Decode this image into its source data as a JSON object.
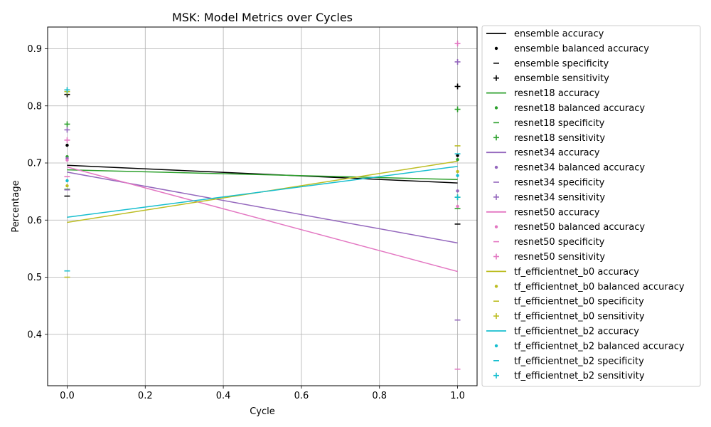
{
  "chart_data": {
    "type": "line",
    "title": "MSK: Model Metrics over Cycles",
    "xlabel": "Cycle",
    "ylabel": "Percentage",
    "xlim": [
      -0.05,
      1.05
    ],
    "ylim": [
      0.31,
      0.938
    ],
    "xticks": [
      "0.0",
      "0.2",
      "0.4",
      "0.6",
      "0.8",
      "1.0"
    ],
    "xtick_values": [
      0,
      0.2,
      0.4,
      0.6,
      0.8,
      1.0
    ],
    "yticks": [
      "0.4",
      "0.5",
      "0.6",
      "0.7",
      "0.8",
      "0.9"
    ],
    "ytick_values": [
      0.4,
      0.5,
      0.6,
      0.7,
      0.8,
      0.9
    ],
    "grid": true,
    "legend_position": "outside-right",
    "x": [
      0,
      1
    ],
    "models": [
      {
        "name": "ensemble",
        "color": "#000000",
        "accuracy": [
          0.696,
          0.665
        ],
        "balanced_accuracy": [
          0.731,
          0.713
        ],
        "specificity": [
          0.642,
          0.593
        ],
        "sensitivity": [
          0.82,
          0.834
        ]
      },
      {
        "name": "resnet18",
        "color": "#2ca02c",
        "accuracy": [
          0.688,
          0.671
        ],
        "balanced_accuracy": [
          0.711,
          0.706
        ],
        "specificity": [
          0.654,
          0.62
        ],
        "sensitivity": [
          0.768,
          0.794
        ]
      },
      {
        "name": "resnet34",
        "color": "#9467bd",
        "accuracy": [
          0.684,
          0.56
        ],
        "balanced_accuracy": [
          0.708,
          0.651
        ],
        "specificity": [
          0.653,
          0.425
        ],
        "sensitivity": [
          0.758,
          0.877
        ]
      },
      {
        "name": "resnet50",
        "color": "#e377c2",
        "accuracy": [
          0.693,
          0.51
        ],
        "balanced_accuracy": [
          0.705,
          0.624
        ],
        "specificity": [
          0.676,
          0.339
        ],
        "sensitivity": [
          0.74,
          0.909
        ]
      },
      {
        "name": "tf_efficientnet_b0",
        "color": "#bcbd22",
        "accuracy": [
          0.596,
          0.703
        ],
        "balanced_accuracy": [
          0.66,
          0.685
        ],
        "specificity": [
          0.5,
          0.73
        ],
        "sensitivity": [
          0.825,
          0.64
        ]
      },
      {
        "name": "tf_efficientnet_b2",
        "color": "#17becf",
        "accuracy": [
          0.605,
          0.694
        ],
        "balanced_accuracy": [
          0.669,
          0.678
        ],
        "specificity": [
          0.511,
          0.716
        ],
        "sensitivity": [
          0.828,
          0.64
        ]
      }
    ],
    "legend": [
      "ensemble accuracy",
      "ensemble balanced accuracy",
      "ensemble specificity",
      "ensemble sensitivity",
      "resnet18 accuracy",
      "resnet18 balanced accuracy",
      "resnet18 specificity",
      "resnet18 sensitivity",
      "resnet34 accuracy",
      "resnet34 balanced accuracy",
      "resnet34 specificity",
      "resnet34 sensitivity",
      "resnet50 accuracy",
      "resnet50 balanced accuracy",
      "resnet50 specificity",
      "resnet50 sensitivity",
      "tf_efficientnet_b0 accuracy",
      "tf_efficientnet_b0 balanced accuracy",
      "tf_efficientnet_b0 specificity",
      "tf_efficientnet_b0 sensitivity",
      "tf_efficientnet_b2 accuracy",
      "tf_efficientnet_b2 balanced accuracy",
      "tf_efficientnet_b2 specificity",
      "tf_efficientnet_b2 sensitivity"
    ]
  }
}
